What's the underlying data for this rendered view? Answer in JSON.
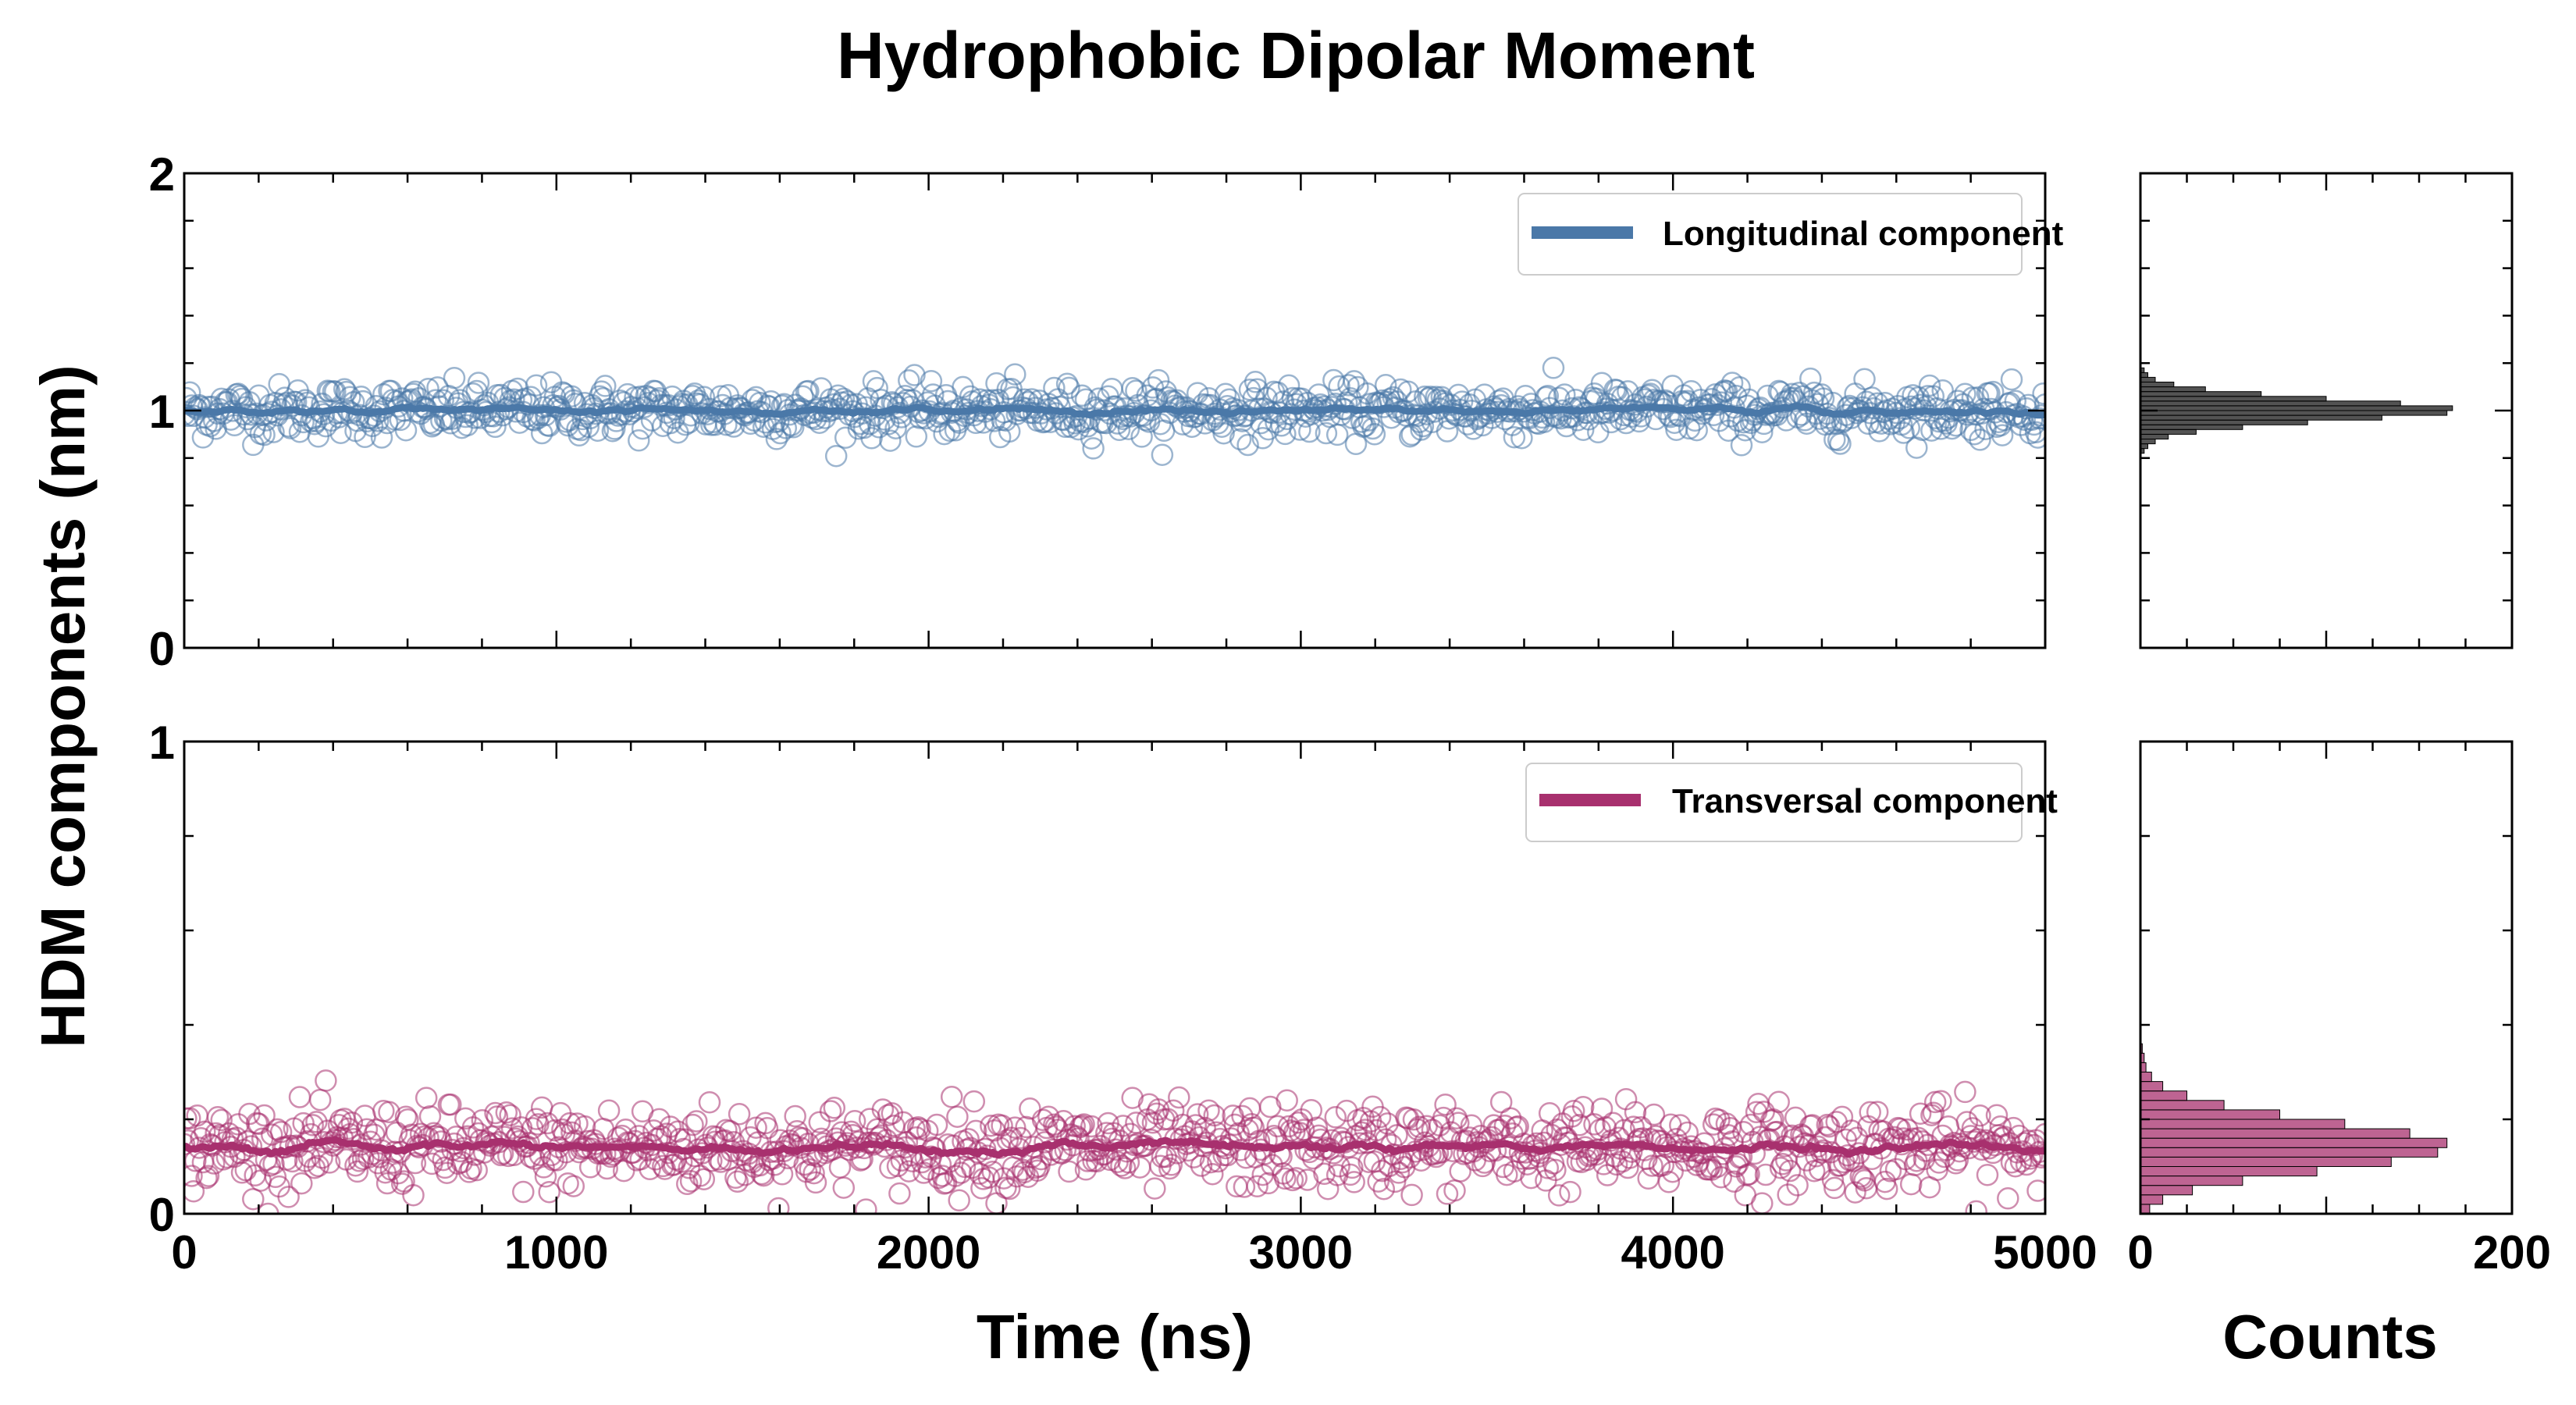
{
  "figure": {
    "title": "Hydrophobic Dipolar Moment",
    "ylabel": "HDM components (nm)",
    "xlabel_time": "Time (ns)",
    "xlabel_counts": "Counts"
  },
  "colors": {
    "longitudinal": "#4a78a8",
    "transversal": "#a8306e",
    "histogram": "#1a1a1a"
  },
  "chart_data": [
    {
      "type": "scatter",
      "panel": "top-time-series",
      "xlim": [
        0,
        5000
      ],
      "ylim": [
        0,
        2
      ],
      "x_ticks": [
        0,
        1000,
        2000,
        3000,
        4000,
        5000
      ],
      "y_ticks": [
        0,
        1,
        2
      ],
      "grid": false,
      "legend": "top-right",
      "series": [
        {
          "name": "Longitudinal component",
          "n_points": 1000,
          "x_range": [
            0,
            5000
          ],
          "mean": 1.0,
          "std": 0.055,
          "min": 0.8,
          "max": 1.18,
          "running_mean": 1.0
        }
      ]
    },
    {
      "type": "scatter",
      "panel": "bottom-time-series",
      "xlim": [
        0,
        5000
      ],
      "ylim": [
        0,
        1
      ],
      "x_ticks": [
        0,
        1000,
        2000,
        3000,
        4000,
        5000
      ],
      "x_tick_labels": [
        "0",
        "1000",
        "2000",
        "3000",
        "4000",
        "5000"
      ],
      "y_ticks": [
        0,
        1
      ],
      "grid": false,
      "legend": "top-right",
      "series": [
        {
          "name": "Transversal component",
          "n_points": 1000,
          "x_range": [
            0,
            5000
          ],
          "mean": 0.14,
          "std": 0.045,
          "min": 0.0,
          "max": 0.34,
          "running_mean": 0.14
        }
      ]
    },
    {
      "type": "bar",
      "panel": "top-histogram",
      "orientation": "horizontal",
      "xlim": [
        0,
        200
      ],
      "ylim": [
        0,
        2
      ],
      "bin_centers": [
        0.83,
        0.85,
        0.87,
        0.89,
        0.91,
        0.93,
        0.95,
        0.97,
        0.99,
        1.01,
        1.03,
        1.05,
        1.07,
        1.09,
        1.11,
        1.13,
        1.15,
        1.17
      ],
      "counts": [
        2,
        4,
        8,
        15,
        30,
        55,
        90,
        130,
        165,
        168,
        140,
        100,
        65,
        35,
        18,
        8,
        4,
        2
      ]
    },
    {
      "type": "bar",
      "panel": "bottom-histogram",
      "orientation": "horizontal",
      "xlim": [
        0,
        200
      ],
      "ylim": [
        0,
        1
      ],
      "x_ticks": [
        0,
        200
      ],
      "x_tick_labels": [
        "0",
        "200"
      ],
      "bin_centers": [
        0.01,
        0.03,
        0.05,
        0.07,
        0.09,
        0.11,
        0.13,
        0.15,
        0.17,
        0.19,
        0.21,
        0.23,
        0.25,
        0.27,
        0.29,
        0.31,
        0.33,
        0.35
      ],
      "counts": [
        5,
        12,
        28,
        55,
        95,
        135,
        160,
        165,
        145,
        110,
        75,
        45,
        25,
        12,
        6,
        3,
        2,
        1
      ]
    }
  ]
}
